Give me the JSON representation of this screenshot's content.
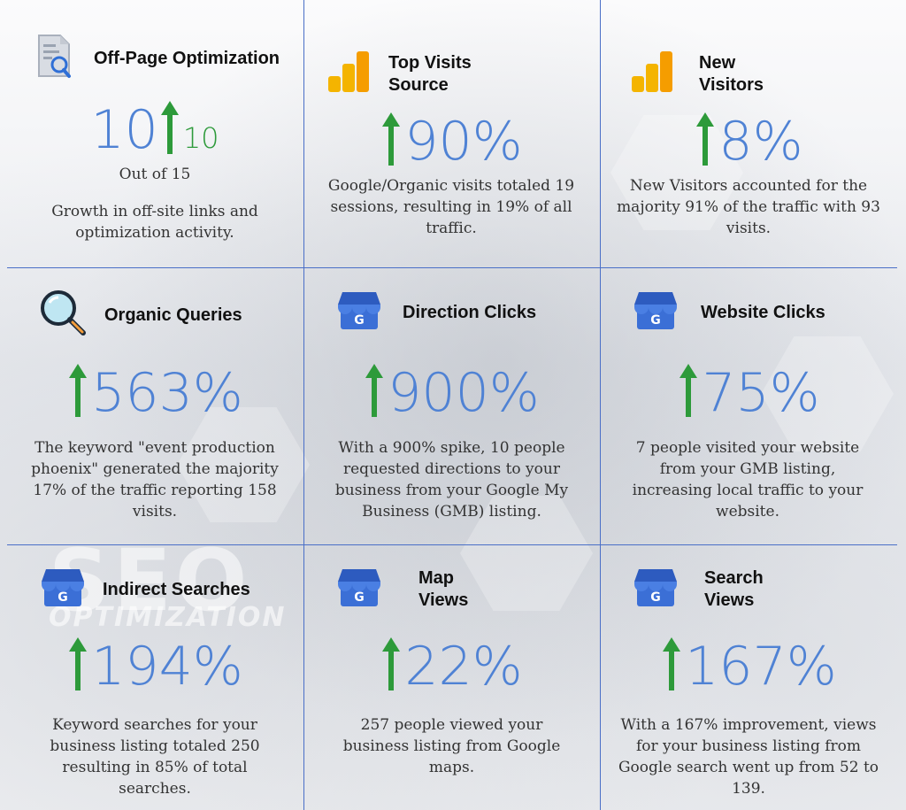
{
  "cells": [
    {
      "title": "Off-Page Optimization",
      "value": "10",
      "sub_value": "10",
      "out_of": "Out of 15",
      "description": "Growth in off-site links and optimization activity.",
      "icon": "document-search-icon"
    },
    {
      "title": "Top Visits Source",
      "value": "90%",
      "description": "Google/Organic visits totaled 19 sessions, resulting in 19% of all traffic.",
      "icon": "analytics-bars-icon"
    },
    {
      "title": "New Visitors",
      "value": "8%",
      "description": "New Visitors accounted for the majority 91% of the traffic with 93 visits.",
      "icon": "analytics-bars-icon"
    },
    {
      "title": "Organic Queries",
      "value": "563%",
      "description": "The keyword \"event production phoenix\" generated the majority 17% of the traffic reporting 158 visits.",
      "icon": "magnifier-icon"
    },
    {
      "title": "Direction Clicks",
      "value": "900%",
      "description": "With a 900% spike, 10 people requested directions to your business from your Google My Business (GMB) listing.",
      "icon": "google-my-business-icon"
    },
    {
      "title": "Website Clicks",
      "value": "75%",
      "description": "7 people visited your website from your GMB listing, increasing local traffic to your website.",
      "icon": "google-my-business-icon"
    },
    {
      "title": "Indirect Searches",
      "value": "194%",
      "description": "Keyword searches for your business listing totaled 250 resulting in 85% of total searches.",
      "icon": "google-my-business-icon"
    },
    {
      "title": "Map Views",
      "value": "22%",
      "description": "257 people viewed your business listing from Google maps.",
      "icon": "google-my-business-icon"
    },
    {
      "title": "Search Views",
      "value": "167%",
      "description": "With a 167% improvement, views for your business listing from Google search went up from 52 to 139.",
      "icon": "google-my-business-icon"
    }
  ],
  "colors": {
    "metric": "#4f82d4",
    "arrow_up": "#2d9a3a",
    "grid": "#4a6fc7",
    "gmb_blue": "#3b6fd6",
    "gmb_top": "#2d5bbf"
  }
}
